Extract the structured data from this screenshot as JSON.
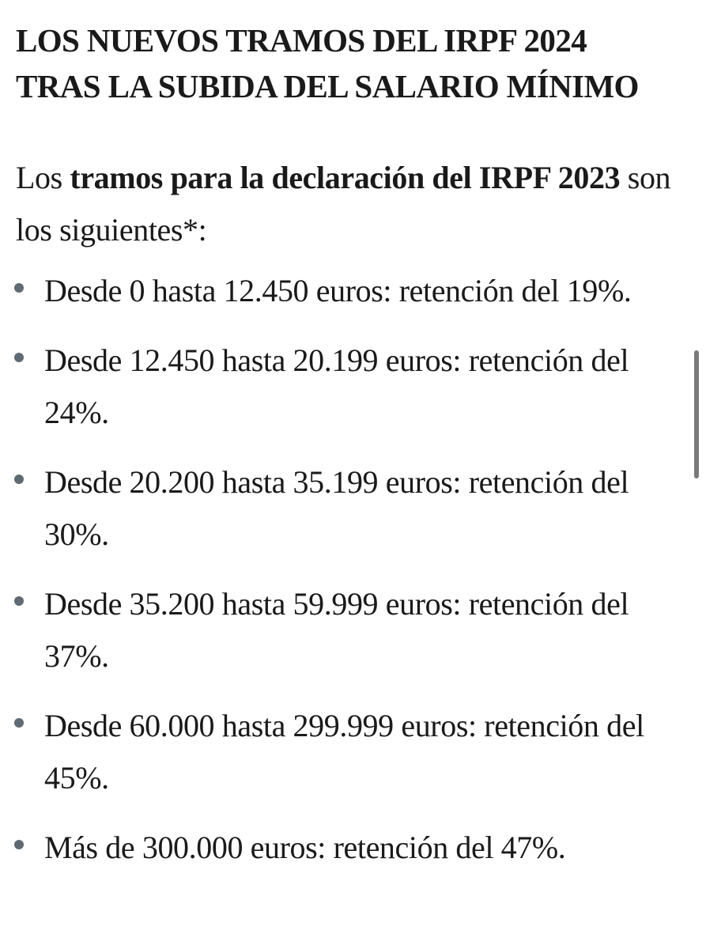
{
  "headline": {
    "line1": "LOS NUEVOS TRAMOS DEL IRPF 2024",
    "line2": "TRAS LA SUBIDA DEL SALARIO MÍNIMO"
  },
  "intro": {
    "prefix": "Los ",
    "bold": "tramos para la declaración del IRPF 2023",
    "suffix": " son los siguientes*:"
  },
  "brackets": [
    {
      "text": "Desde 0 hasta 12.450 euros: retención del 19%."
    },
    {
      "text": "Desde 12.450 hasta 20.199 euros: retención del 24%."
    },
    {
      "text": "Desde 20.200 hasta 35.199 euros: retención del 30%."
    },
    {
      "text": "Desde 35.200 hasta 59.999 euros: retención del 37%."
    },
    {
      "text": "Desde 60.000 hasta 299.999 euros: retención del 45%."
    },
    {
      "text": "Más de 300.000 euros: retención del 47%."
    }
  ],
  "colors": {
    "text": "#1a1a1a",
    "bullet": "#5f6a72",
    "scrollbar": "#7a7a7a",
    "background": "#ffffff"
  }
}
